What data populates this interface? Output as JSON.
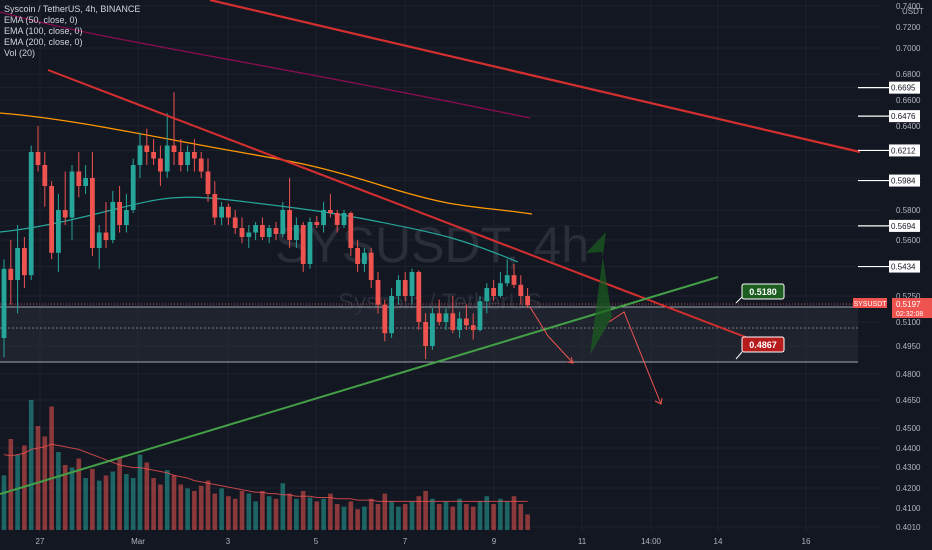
{
  "chart_data": {
    "type": "candlestick",
    "symbol_title": "Syscoin / TetherUS, 4h, BINANCE",
    "watermark_symbol": "SYSUSDT, 4h",
    "watermark_name": "Syscoin / TetherUS",
    "indicators": [
      "EMA (50, close, 0)",
      "EMA (100, close, 0)",
      "EMA (200, close, 0)",
      "Vol (20)"
    ],
    "y_unit": "USDT",
    "y_ticks": [
      "0.7400",
      "0.7200",
      "0.7000",
      "0.6800",
      "0.6695",
      "0.6600",
      "0.6476",
      "0.6400",
      "0.6212",
      "0.6000",
      "0.5984",
      "0.5800",
      "0.5694",
      "0.5600",
      "0.5434",
      "0.5250",
      "0.5197",
      "0.5100",
      "0.4950",
      "0.4800",
      "0.4650",
      "0.4500",
      "0.4400",
      "0.4300",
      "0.4200",
      "0.4100",
      "0.4010"
    ],
    "x_ticks": [
      "27",
      "Mar",
      "3",
      "5",
      "7",
      "9",
      "11",
      "14:00",
      "14",
      "16"
    ],
    "level_labels": [
      "0.6695",
      "0.6476",
      "0.6212",
      "0.5984",
      "0.5694",
      "0.5434"
    ],
    "current_price": {
      "symbol": "SYSUSDT",
      "price": "0.5197",
      "countdown": "02:32:08"
    },
    "annotations": [
      "0.5180",
      "0.4867"
    ],
    "colors": {
      "background": "#131722",
      "up": "#26a69a",
      "down": "#ef5350",
      "resistance": "#d32f2f",
      "support": "#43a047",
      "ema50": "#26a69a",
      "ema100": "#ff9800",
      "ema200": "#880e4f",
      "label_green": "#1b5e20",
      "label_red": "#b71c1c"
    },
    "candles": [
      {
        "o": 0.5,
        "h": 0.548,
        "l": 0.489,
        "c": 0.542
      },
      {
        "o": 0.542,
        "h": 0.56,
        "l": 0.52,
        "c": 0.535
      },
      {
        "o": 0.535,
        "h": 0.57,
        "l": 0.515,
        "c": 0.555
      },
      {
        "o": 0.555,
        "h": 0.562,
        "l": 0.53,
        "c": 0.538
      },
      {
        "o": 0.538,
        "h": 0.625,
        "l": 0.535,
        "c": 0.62
      },
      {
        "o": 0.62,
        "h": 0.64,
        "l": 0.605,
        "c": 0.61
      },
      {
        "o": 0.61,
        "h": 0.62,
        "l": 0.582,
        "c": 0.595
      },
      {
        "o": 0.595,
        "h": 0.598,
        "l": 0.548,
        "c": 0.552
      },
      {
        "o": 0.552,
        "h": 0.59,
        "l": 0.54,
        "c": 0.58
      },
      {
        "o": 0.58,
        "h": 0.605,
        "l": 0.57,
        "c": 0.575
      },
      {
        "o": 0.575,
        "h": 0.61,
        "l": 0.56,
        "c": 0.605
      },
      {
        "o": 0.605,
        "h": 0.62,
        "l": 0.588,
        "c": 0.595
      },
      {
        "o": 0.595,
        "h": 0.61,
        "l": 0.59,
        "c": 0.6
      },
      {
        "o": 0.6,
        "h": 0.62,
        "l": 0.55,
        "c": 0.555
      },
      {
        "o": 0.555,
        "h": 0.57,
        "l": 0.542,
        "c": 0.565
      },
      {
        "o": 0.565,
        "h": 0.585,
        "l": 0.555,
        "c": 0.56
      },
      {
        "o": 0.56,
        "h": 0.592,
        "l": 0.558,
        "c": 0.585
      },
      {
        "o": 0.585,
        "h": 0.595,
        "l": 0.565,
        "c": 0.57
      },
      {
        "o": 0.57,
        "h": 0.59,
        "l": 0.565,
        "c": 0.58
      },
      {
        "o": 0.58,
        "h": 0.615,
        "l": 0.578,
        "c": 0.61
      },
      {
        "o": 0.61,
        "h": 0.635,
        "l": 0.6,
        "c": 0.625
      },
      {
        "o": 0.625,
        "h": 0.638,
        "l": 0.61,
        "c": 0.62
      },
      {
        "o": 0.62,
        "h": 0.63,
        "l": 0.61,
        "c": 0.615
      },
      {
        "o": 0.615,
        "h": 0.625,
        "l": 0.595,
        "c": 0.605
      },
      {
        "o": 0.605,
        "h": 0.65,
        "l": 0.6,
        "c": 0.625
      },
      {
        "o": 0.625,
        "h": 0.666,
        "l": 0.61,
        "c": 0.62
      },
      {
        "o": 0.62,
        "h": 0.63,
        "l": 0.605,
        "c": 0.61
      },
      {
        "o": 0.61,
        "h": 0.625,
        "l": 0.605,
        "c": 0.62
      },
      {
        "o": 0.62,
        "h": 0.63,
        "l": 0.605,
        "c": 0.615
      },
      {
        "o": 0.615,
        "h": 0.62,
        "l": 0.6,
        "c": 0.605
      },
      {
        "o": 0.605,
        "h": 0.615,
        "l": 0.585,
        "c": 0.59
      },
      {
        "o": 0.59,
        "h": 0.598,
        "l": 0.57,
        "c": 0.575
      },
      {
        "o": 0.575,
        "h": 0.585,
        "l": 0.57,
        "c": 0.582
      },
      {
        "o": 0.582,
        "h": 0.584,
        "l": 0.57,
        "c": 0.575
      },
      {
        "o": 0.575,
        "h": 0.58,
        "l": 0.564,
        "c": 0.568
      },
      {
        "o": 0.568,
        "h": 0.575,
        "l": 0.558,
        "c": 0.562
      },
      {
        "o": 0.562,
        "h": 0.57,
        "l": 0.555,
        "c": 0.565
      },
      {
        "o": 0.565,
        "h": 0.572,
        "l": 0.56,
        "c": 0.57
      },
      {
        "o": 0.57,
        "h": 0.575,
        "l": 0.56,
        "c": 0.562
      },
      {
        "o": 0.562,
        "h": 0.57,
        "l": 0.558,
        "c": 0.568
      },
      {
        "o": 0.568,
        "h": 0.572,
        "l": 0.56,
        "c": 0.564
      },
      {
        "o": 0.564,
        "h": 0.585,
        "l": 0.562,
        "c": 0.58
      },
      {
        "o": 0.58,
        "h": 0.6,
        "l": 0.555,
        "c": 0.56
      },
      {
        "o": 0.56,
        "h": 0.575,
        "l": 0.555,
        "c": 0.57
      },
      {
        "o": 0.57,
        "h": 0.572,
        "l": 0.54,
        "c": 0.545
      },
      {
        "o": 0.545,
        "h": 0.575,
        "l": 0.542,
        "c": 0.572
      },
      {
        "o": 0.572,
        "h": 0.576,
        "l": 0.568,
        "c": 0.57
      },
      {
        "o": 0.57,
        "h": 0.585,
        "l": 0.565,
        "c": 0.58
      },
      {
        "o": 0.58,
        "h": 0.59,
        "l": 0.575,
        "c": 0.578
      },
      {
        "o": 0.578,
        "h": 0.58,
        "l": 0.565,
        "c": 0.57
      },
      {
        "o": 0.57,
        "h": 0.58,
        "l": 0.568,
        "c": 0.578
      },
      {
        "o": 0.578,
        "h": 0.579,
        "l": 0.55,
        "c": 0.555
      },
      {
        "o": 0.555,
        "h": 0.56,
        "l": 0.54,
        "c": 0.545
      },
      {
        "o": 0.545,
        "h": 0.555,
        "l": 0.54,
        "c": 0.552
      },
      {
        "o": 0.552,
        "h": 0.555,
        "l": 0.53,
        "c": 0.535
      },
      {
        "o": 0.535,
        "h": 0.54,
        "l": 0.515,
        "c": 0.52
      },
      {
        "o": 0.52,
        "h": 0.523,
        "l": 0.498,
        "c": 0.503
      },
      {
        "o": 0.503,
        "h": 0.53,
        "l": 0.5,
        "c": 0.525
      },
      {
        "o": 0.525,
        "h": 0.538,
        "l": 0.52,
        "c": 0.535
      },
      {
        "o": 0.535,
        "h": 0.54,
        "l": 0.522,
        "c": 0.525
      },
      {
        "o": 0.525,
        "h": 0.542,
        "l": 0.52,
        "c": 0.54
      },
      {
        "o": 0.54,
        "h": 0.541,
        "l": 0.505,
        "c": 0.51
      },
      {
        "o": 0.51,
        "h": 0.515,
        "l": 0.488,
        "c": 0.495
      },
      {
        "o": 0.495,
        "h": 0.518,
        "l": 0.493,
        "c": 0.515
      },
      {
        "o": 0.515,
        "h": 0.523,
        "l": 0.508,
        "c": 0.51
      },
      {
        "o": 0.51,
        "h": 0.518,
        "l": 0.505,
        "c": 0.515
      },
      {
        "o": 0.515,
        "h": 0.525,
        "l": 0.503,
        "c": 0.505
      },
      {
        "o": 0.505,
        "h": 0.516,
        "l": 0.5,
        "c": 0.512
      },
      {
        "o": 0.512,
        "h": 0.52,
        "l": 0.505,
        "c": 0.508
      },
      {
        "o": 0.508,
        "h": 0.515,
        "l": 0.499,
        "c": 0.505
      },
      {
        "o": 0.505,
        "h": 0.525,
        "l": 0.504,
        "c": 0.522
      },
      {
        "o": 0.522,
        "h": 0.533,
        "l": 0.515,
        "c": 0.53
      },
      {
        "o": 0.53,
        "h": 0.535,
        "l": 0.522,
        "c": 0.525
      },
      {
        "o": 0.525,
        "h": 0.54,
        "l": 0.524,
        "c": 0.533
      },
      {
        "o": 0.533,
        "h": 0.548,
        "l": 0.531,
        "c": 0.538
      },
      {
        "o": 0.538,
        "h": 0.545,
        "l": 0.53,
        "c": 0.532
      },
      {
        "o": 0.532,
        "h": 0.538,
        "l": 0.52,
        "c": 0.525
      },
      {
        "o": 0.525,
        "h": 0.53,
        "l": 0.518,
        "c": 0.5197
      }
    ],
    "volumes": [
      42,
      70,
      58,
      65,
      100,
      80,
      72,
      95,
      60,
      50,
      48,
      55,
      40,
      47,
      38,
      42,
      45,
      55,
      43,
      40,
      58,
      52,
      40,
      35,
      46,
      42,
      35,
      32,
      30,
      34,
      38,
      28,
      32,
      26,
      24,
      30,
      28,
      22,
      30,
      26,
      24,
      36,
      28,
      24,
      30,
      25,
      22,
      24,
      28,
      20,
      18,
      22,
      16,
      18,
      24,
      20,
      28,
      22,
      18,
      20,
      22,
      26,
      30,
      24,
      20,
      22,
      18,
      24,
      20,
      18,
      22,
      26,
      20,
      24,
      22,
      26,
      20,
      12
    ],
    "vol_ma": [
      58,
      57,
      58,
      59,
      62,
      63,
      64,
      66,
      65,
      64,
      63,
      62,
      60,
      58,
      56,
      54,
      52,
      50,
      49,
      48,
      48,
      47,
      46,
      45,
      44,
      42,
      41,
      40,
      38,
      37,
      36,
      35,
      34,
      33,
      32,
      31,
      30,
      29,
      29,
      28,
      28,
      27,
      27,
      26,
      26,
      26,
      25,
      25,
      25,
      24,
      24,
      24,
      23,
      23,
      23,
      22,
      22,
      22,
      22,
      22,
      22,
      22,
      22,
      22,
      22,
      22,
      22,
      22,
      22,
      22,
      22,
      22,
      22,
      22,
      22,
      22,
      22,
      22
    ]
  }
}
